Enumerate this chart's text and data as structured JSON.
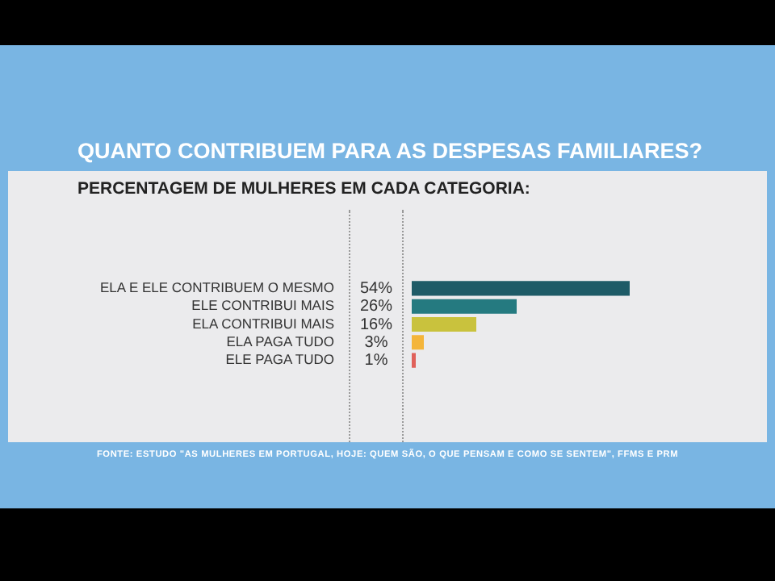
{
  "chart_data": {
    "type": "bar",
    "orientation": "horizontal",
    "title": "QUANTO CONTRIBUEM PARA AS DESPESAS FAMILIARES?",
    "subtitle": "PERCENTAGEM DE MULHERES EM CADA CATEGORIA:",
    "categories": [
      "ELA E ELE CONTRIBUEM O MESMO",
      "ELE CONTRIBUI MAIS",
      "ELA CONTRIBUI MAIS",
      "ELA PAGA TUDO",
      "ELE PAGA TUDO"
    ],
    "values": [
      54,
      26,
      16,
      3,
      1
    ],
    "value_labels": [
      "54%",
      "26%",
      "16%",
      "3%",
      "1%"
    ],
    "colors": [
      "#1e5b67",
      "#257a80",
      "#c9c23d",
      "#f4b53a",
      "#e0615a"
    ],
    "legend": false,
    "tick_labels": "y",
    "annotations": [
      "FONTE: ESTUDO \"AS MULHERES EM PORTUGAL, HOJE: QUEM SÃO, O QUE PENSAM E COMO SE SENTEM\", FFMS E PRM"
    ]
  }
}
